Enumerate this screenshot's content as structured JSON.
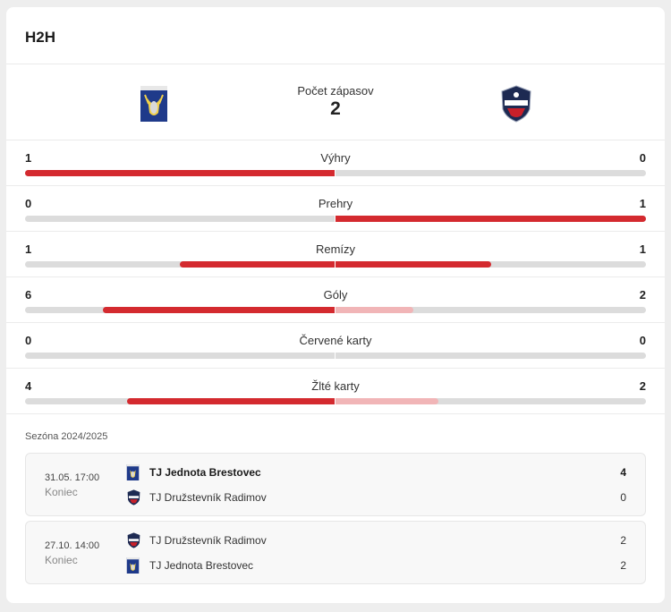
{
  "header": {
    "title": "H2H"
  },
  "summary": {
    "label": "Počet zápasov",
    "value": "2",
    "home_logo": "brestovec-crest-icon",
    "away_logo": "radimov-crest-icon"
  },
  "stats": [
    {
      "name": "Výhry",
      "home": "1",
      "away": "0",
      "home_fill": 1.0,
      "away_fill": 0.0,
      "home_strong": true,
      "away_strong": false
    },
    {
      "name": "Prehry",
      "home": "0",
      "away": "1",
      "home_fill": 0.0,
      "away_fill": 1.0,
      "home_strong": false,
      "away_strong": true
    },
    {
      "name": "Remízy",
      "home": "1",
      "away": "1",
      "home_fill": 0.5,
      "away_fill": 0.5,
      "home_strong": true,
      "away_strong": true
    },
    {
      "name": "Góly",
      "home": "6",
      "away": "2",
      "home_fill": 0.75,
      "away_fill": 0.25,
      "home_strong": true,
      "away_strong": false
    },
    {
      "name": "Červené karty",
      "home": "0",
      "away": "0",
      "home_fill": 0.0,
      "away_fill": 0.0,
      "home_strong": false,
      "away_strong": false
    },
    {
      "name": "Žlté karty",
      "home": "4",
      "away": "2",
      "home_fill": 0.67,
      "away_fill": 0.33,
      "home_strong": true,
      "away_strong": false
    }
  ],
  "season": {
    "label": "Sezóna 2024/2025"
  },
  "matches": [
    {
      "time": "31.05. 17:00",
      "status": "Koniec",
      "teams": [
        {
          "name": "TJ Jednota Brestovec",
          "score": "4",
          "winner": true,
          "logo": "brestovec-crest-icon"
        },
        {
          "name": "TJ Družstevník Radimov",
          "score": "0",
          "winner": false,
          "logo": "radimov-crest-icon"
        }
      ]
    },
    {
      "time": "27.10. 14:00",
      "status": "Koniec",
      "teams": [
        {
          "name": "TJ Družstevník Radimov",
          "score": "2",
          "winner": false,
          "logo": "radimov-crest-icon"
        },
        {
          "name": "TJ Jednota Brestovec",
          "score": "2",
          "winner": false,
          "logo": "brestovec-crest-icon"
        }
      ]
    }
  ],
  "colors": {
    "accent": "#d42a2f",
    "accent_light": "#f1b5b7",
    "track": "#dcdcdc"
  }
}
